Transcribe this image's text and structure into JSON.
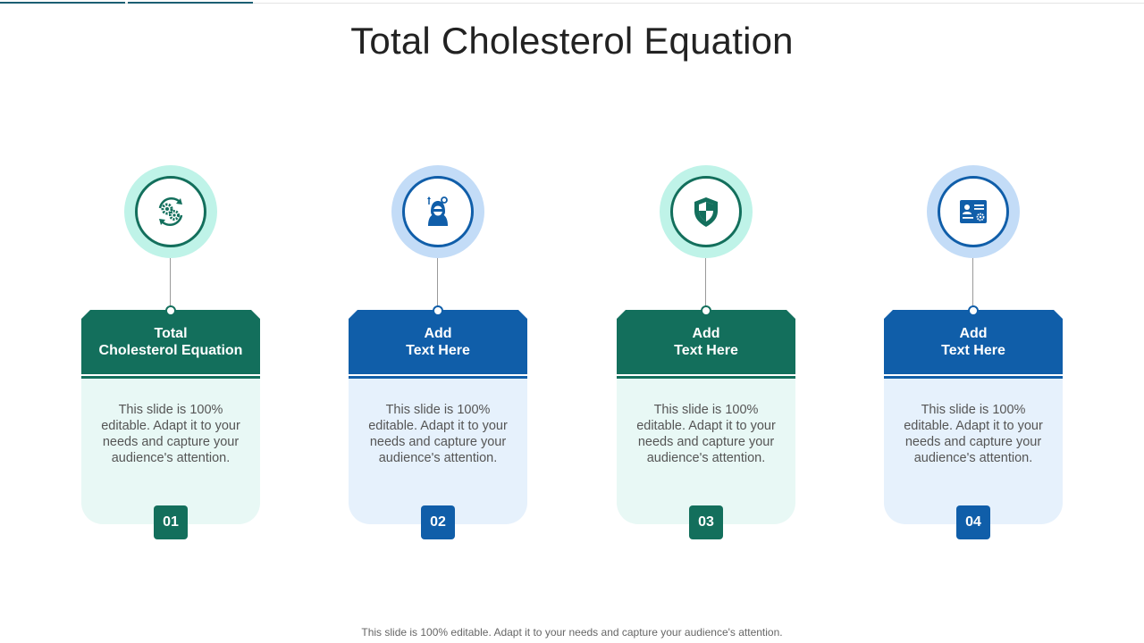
{
  "title": "Total Cholesterol Equation",
  "colors": {
    "green": "#136f5c",
    "green_light": "#bff3e8",
    "green_pale": "#e8f8f5",
    "blue": "#105ea9",
    "blue_light": "#c3dcf7",
    "blue_pale": "#e6f1fc"
  },
  "cards": [
    {
      "heading_lines": [
        "Total",
        "Cholesterol Equation"
      ],
      "description": "This slide is 100% editable. Adapt it to your needs and capture your audience's attention.",
      "number": "01",
      "icon": "gears-cycle-icon"
    },
    {
      "heading_lines": [
        "Add",
        "Text Here"
      ],
      "description": "This slide is 100% editable. Adapt it to your needs and capture your audience's attention.",
      "number": "02",
      "icon": "hooded-hacker-icon"
    },
    {
      "heading_lines": [
        "Add",
        "Text Here"
      ],
      "description": "This slide is 100% editable. Adapt it to your needs and capture your audience's attention.",
      "number": "03",
      "icon": "shield-icon"
    },
    {
      "heading_lines": [
        "Add",
        "Text Here"
      ],
      "description": "This slide is 100% editable. Adapt it to your needs and capture your audience's attention.",
      "number": "04",
      "icon": "id-card-settings-icon"
    }
  ],
  "footer": "This slide is 100% editable. Adapt it to your needs and capture your audience's attention."
}
